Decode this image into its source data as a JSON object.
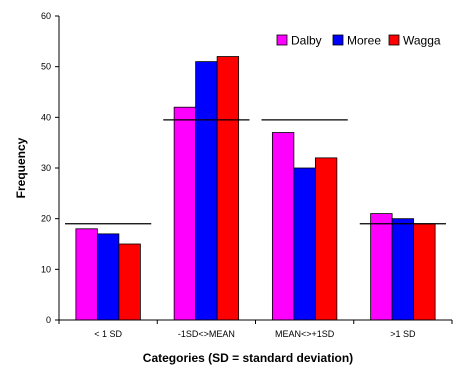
{
  "chart_data": {
    "type": "bar",
    "title": "",
    "xlabel": "Categories (SD = standard deviation)",
    "ylabel": "Frequency",
    "ylim": [
      0,
      60
    ],
    "yticks": [
      "0",
      "10",
      "20",
      "30",
      "40",
      "50",
      "60"
    ],
    "categories": [
      "< 1 SD",
      "-1SD<>MEAN",
      "MEAN<>+1SD",
      ">1 SD"
    ],
    "series": [
      {
        "name": "Dalby",
        "color": "#ff00ff",
        "values": [
          18,
          42,
          37,
          21
        ]
      },
      {
        "name": "Moree",
        "color": "#0000ff",
        "values": [
          17,
          51,
          30,
          20
        ]
      },
      {
        "name": "Wagga",
        "color": "#ff0000",
        "values": [
          15,
          52,
          32,
          19
        ]
      }
    ],
    "reference_lines": [
      19,
      39.5,
      39.5,
      19
    ],
    "reference_line_color": "#000000",
    "legend_position": "top-right",
    "grid": false
  }
}
